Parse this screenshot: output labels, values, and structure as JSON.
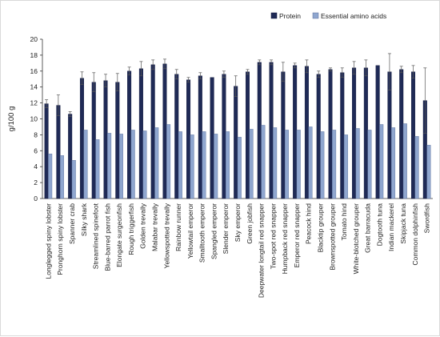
{
  "chart_data": {
    "type": "bar",
    "title": "",
    "xlabel": "",
    "ylabel": "g/100 g",
    "ylim": [
      0,
      20
    ],
    "yticks": [
      0,
      2,
      4,
      6,
      8,
      10,
      12,
      14,
      16,
      18,
      20
    ],
    "grid": false,
    "legend_position": "top-right",
    "categories": [
      "Longlegged spiny lobster",
      "Pronghorn spiny lobster",
      "Spanner crab",
      "Silky shark",
      "Streamlined spinefoot",
      "Blue-barred parrot fish",
      "Elongate surgeonfish",
      "Rough triggerfish",
      "Golden trevally",
      "Malabar trevally",
      "Yellowspotted trevally",
      "Rainbow runner",
      "Yellowtail emperor",
      "Smalltooth emperor",
      "Spangled emperor",
      "Slender emperor",
      "Sky emperor",
      "Green jobfish",
      "Deepwater longtail red snapper",
      "Two-spot red snapper",
      "Humpback red snapper",
      "Emperor red snapper",
      "Peacock hind",
      "Blacktip grouper",
      "Brownspotted grouper",
      "Tomato hind",
      "White-blotched grouper",
      "Great barracuda",
      "Dogtooth tuna",
      "Indian mackerel",
      "Skipjack tuna",
      "Common dolphinfish",
      "Swordfish"
    ],
    "series": [
      {
        "name": "Protein",
        "color": "#1f2a56",
        "values": [
          11.9,
          11.7,
          10.6,
          15.1,
          14.6,
          14.8,
          14.6,
          16.0,
          16.3,
          16.8,
          16.9,
          15.6,
          14.9,
          15.4,
          15.2,
          15.6,
          14.1,
          15.9,
          17.1,
          17.1,
          15.9,
          16.7,
          16.6,
          15.6,
          16.2,
          15.8,
          16.4,
          16.4,
          16.7,
          15.9,
          16.2,
          15.9,
          12.3
        ],
        "errors": [
          0.5,
          1.3,
          0.3,
          0.8,
          1.2,
          0.8,
          1.1,
          0.5,
          0.9,
          0.6,
          0.6,
          0.6,
          0.3,
          0.4,
          0.0,
          0.4,
          1.3,
          0.3,
          0.3,
          0.3,
          1.2,
          0.3,
          0.8,
          0.4,
          0.2,
          0.6,
          0.8,
          1.0,
          0.0,
          2.3,
          0.4,
          0.8,
          4.1
        ]
      },
      {
        "name": "Essential amino acids",
        "color": "#8fa6cf",
        "values": [
          5.6,
          5.4,
          4.8,
          8.6,
          7.4,
          8.2,
          8.1,
          8.6,
          8.5,
          8.9,
          9.3,
          8.4,
          8.0,
          8.4,
          8.1,
          8.4,
          7.7,
          8.7,
          9.2,
          8.9,
          8.6,
          8.6,
          9.0,
          8.4,
          8.6,
          8.0,
          8.8,
          8.6,
          9.3,
          8.9,
          9.4,
          7.8,
          6.7
        ]
      }
    ]
  },
  "legend": {
    "items": [
      {
        "label": "Protein",
        "color": "#1f2a56"
      },
      {
        "label": "Essential amino acids",
        "color": "#8fa6cf"
      }
    ]
  }
}
